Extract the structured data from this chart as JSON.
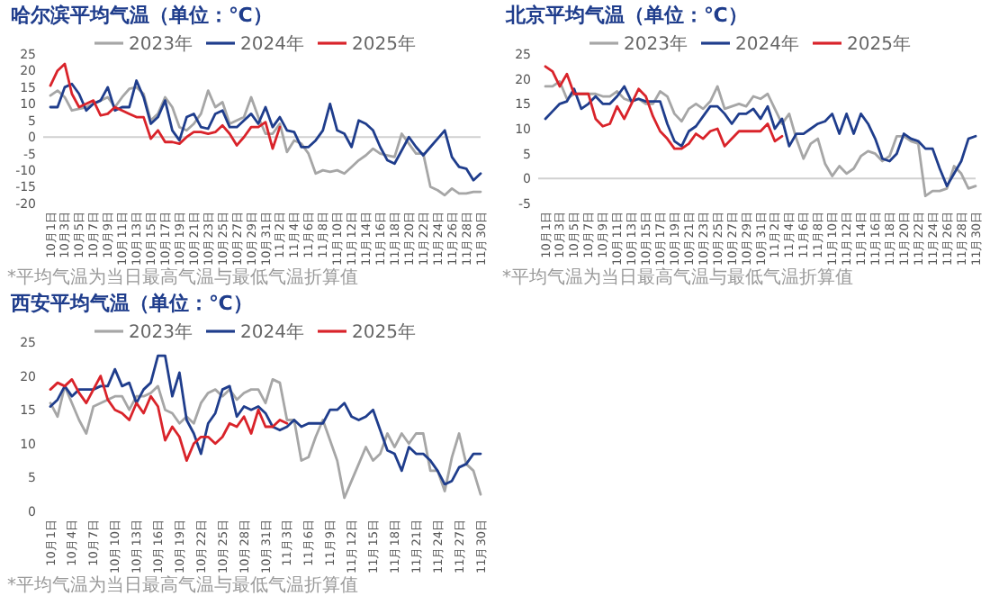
{
  "chart_data": [
    {
      "type": "line",
      "title": "哈尔滨平均气温（单位：℃）",
      "categories": [
        "10月1日",
        null,
        "10月3日",
        null,
        "10月5日",
        null,
        "10月7日",
        null,
        "10月9日",
        null,
        "10月11日",
        null,
        "10月13日",
        null,
        "10月15日",
        null,
        "10月17日",
        null,
        "10月19日",
        null,
        "10月21日",
        null,
        "10月23日",
        null,
        "10月25日",
        null,
        "10月27日",
        null,
        "10月29日",
        null,
        "10月31日",
        null,
        "11月2日",
        null,
        "11月4日",
        null,
        "11月6日",
        null,
        "11月8日",
        null,
        "11月10日",
        null,
        "11月12日",
        null,
        "11月14日",
        null,
        "11月16日",
        null,
        "11月18日",
        null,
        "11月20日",
        null,
        "11月22日",
        null,
        "11月24日",
        null,
        "11月26日",
        null,
        "11月28日",
        null,
        "11月30日"
      ],
      "series": [
        {
          "name": "2023年",
          "color": "#a6a6a6",
          "values": [
            12.5,
            14,
            12,
            8,
            8.5,
            9,
            10,
            11,
            12,
            9,
            12,
            14.5,
            15,
            13,
            5,
            7,
            12,
            9,
            3,
            2,
            4,
            7,
            14,
            9,
            10.5,
            4,
            5,
            6,
            12,
            6,
            1,
            1,
            4,
            -4.5,
            -1,
            -2,
            -5,
            -11,
            -10,
            -10.5,
            -10,
            -11,
            -9,
            -7,
            -5.5,
            -3.5,
            -5,
            -5.5,
            -6,
            1,
            -2,
            -5,
            -5,
            -15,
            -16,
            -17.5,
            -15.5,
            -17,
            -17,
            -16.5,
            -16.5
          ]
        },
        {
          "name": "2024年",
          "color": "#1f3d8c",
          "values": [
            9,
            9,
            15,
            16,
            13,
            8,
            10,
            11,
            15,
            8,
            9,
            9,
            17,
            12,
            4,
            6,
            11,
            2,
            -1,
            6,
            7,
            3,
            2.5,
            7,
            8,
            3,
            3,
            5,
            7,
            4,
            9,
            3,
            6,
            2,
            1.5,
            -3,
            -3,
            -1,
            2,
            10,
            2,
            1,
            -3,
            5,
            4,
            2,
            -3,
            -7,
            -8,
            -4,
            0,
            -3,
            -5.5,
            -3,
            -0.5,
            2,
            -6,
            -9,
            -9.5,
            -13,
            -11
          ]
        },
        {
          "name": "2025年",
          "color": "#d9232a",
          "values": [
            15.5,
            20,
            22,
            13,
            9,
            10,
            11,
            6.5,
            7,
            9,
            8,
            7,
            6,
            6,
            -0.5,
            2,
            -1.5,
            -1.5,
            -2,
            0,
            1.5,
            1.5,
            1,
            1.5,
            3.5,
            1,
            -2.5,
            0,
            3,
            3,
            4.5,
            -3.5,
            3,
            null,
            null,
            null,
            null,
            null,
            null,
            null,
            null,
            null,
            null,
            null,
            null,
            null,
            null,
            null,
            null,
            null,
            null,
            null,
            null,
            null,
            null,
            null,
            null,
            null,
            null,
            null,
            null
          ]
        }
      ],
      "ylim": [
        -20,
        25
      ],
      "yticks": [
        -20,
        -15,
        -10,
        -5,
        0,
        5,
        10,
        15,
        20,
        25
      ],
      "grid": false,
      "ref_lines": [
        {
          "axis": "y",
          "value": 0,
          "color": "#d0d0d0"
        }
      ],
      "legend": "top",
      "marker": "none",
      "line_style": "solid",
      "annotations": [
        "*平均气温为当日最高气温与最低气温折算值"
      ]
    },
    {
      "type": "line",
      "title": "北京平均气温（单位：℃）",
      "categories": [
        "10月1日",
        null,
        "10月3日",
        null,
        "10月5日",
        null,
        "10月7日",
        null,
        "10月9日",
        null,
        "10月11日",
        null,
        "10月13日",
        null,
        "10月15日",
        null,
        "10月17日",
        null,
        "10月19日",
        null,
        "10月21日",
        null,
        "10月23日",
        null,
        "10月25日",
        null,
        "10月27日",
        null,
        "10月29日",
        null,
        "10月31日",
        null,
        "11月2日",
        null,
        "11月4日",
        null,
        "11月6日",
        null,
        "11月8日",
        null,
        "11月10日",
        null,
        "11月12日",
        null,
        "11月14日",
        null,
        "11月16日",
        null,
        "11月18日",
        null,
        "11月20日",
        null,
        "11月22日",
        null,
        "11月24日",
        null,
        "11月26日",
        null,
        "11月28日",
        null,
        "11月30日"
      ],
      "series": [
        {
          "name": "2023年",
          "color": "#a6a6a6",
          "values": [
            18.5,
            18.5,
            19.5,
            16,
            17,
            17,
            17,
            17,
            16.5,
            16.5,
            17.5,
            16,
            15.5,
            16,
            15,
            15,
            17.5,
            16.5,
            13,
            11.5,
            14,
            15,
            14,
            15.5,
            18.5,
            14,
            14.5,
            15,
            14.5,
            16.5,
            16,
            17,
            14,
            11,
            13,
            8,
            4,
            7,
            8,
            3,
            0.5,
            2.5,
            1,
            2,
            4.5,
            5.5,
            5,
            3.5,
            4.5,
            8.5,
            8.5,
            7.5,
            7,
            -3.5,
            -2.5,
            -2.5,
            -2,
            2.5,
            1,
            -2,
            -1.5
          ]
        },
        {
          "name": "2024年",
          "color": "#1f3d8c",
          "values": [
            12,
            13.5,
            15,
            15.5,
            18,
            14,
            15,
            16.5,
            15,
            15,
            16.5,
            18.5,
            15.5,
            16,
            15.5,
            15.5,
            15.5,
            11,
            7.5,
            6.5,
            9.5,
            10.5,
            12.5,
            14.5,
            14.5,
            13,
            11,
            13,
            13,
            14,
            12,
            14.5,
            10,
            12,
            6.5,
            9,
            9,
            10,
            11,
            11.5,
            13,
            9,
            13,
            9,
            13,
            11,
            8,
            4,
            3.5,
            5,
            9,
            8,
            7.5,
            6,
            6,
            2,
            -1.5,
            1,
            3.5,
            8,
            8.5
          ]
        },
        {
          "name": "2025年",
          "color": "#d9232a",
          "values": [
            22.5,
            21.5,
            18.5,
            21,
            17,
            17,
            17,
            12,
            10.5,
            11,
            14.5,
            12,
            15,
            18,
            16.5,
            12.5,
            9.5,
            8,
            6,
            6,
            7,
            9,
            8,
            9.5,
            10,
            6.5,
            8,
            9.5,
            9.5,
            9.5,
            9.5,
            11,
            7.5,
            8.5,
            null,
            null,
            null,
            null,
            null,
            null,
            null,
            null,
            null,
            null,
            null,
            null,
            null,
            null,
            null,
            null,
            null,
            null,
            null,
            null,
            null,
            null,
            null,
            null,
            null,
            null,
            null
          ]
        }
      ],
      "ylim": [
        -5,
        25
      ],
      "yticks": [
        -5,
        0,
        5,
        10,
        15,
        20,
        25
      ],
      "grid": false,
      "ref_lines": [
        {
          "axis": "y",
          "value": 0,
          "color": "#d0d0d0"
        }
      ],
      "legend": "top",
      "marker": "none",
      "line_style": "solid",
      "annotations": [
        "*平均气温为当日最高气温与最低气温折算值"
      ]
    },
    {
      "type": "line",
      "title": "西安平均气温（单位：℃）",
      "categories": [
        "10月1日",
        null,
        null,
        "10月4日",
        null,
        null,
        "10月7日",
        null,
        null,
        "10月10日",
        null,
        null,
        "10月13日",
        null,
        null,
        "10月16日",
        null,
        null,
        "10月19日",
        null,
        null,
        "10月22日",
        null,
        null,
        "10月25日",
        null,
        null,
        "10月28日",
        null,
        null,
        "10月31日",
        null,
        null,
        "11月3日",
        null,
        null,
        "11月6日",
        null,
        null,
        "11月9日",
        null,
        null,
        "11月12日",
        null,
        null,
        "11月15日",
        null,
        null,
        "11月18日",
        null,
        null,
        "11月21日",
        null,
        null,
        "11月24日",
        null,
        null,
        "11月27日",
        null,
        null,
        "11月30日"
      ],
      "series": [
        {
          "name": "2023年",
          "color": "#a6a6a6",
          "values": [
            16,
            14,
            18.5,
            16,
            13.5,
            11.5,
            15.5,
            16,
            16.5,
            17,
            17,
            15,
            17,
            17,
            17.5,
            18.5,
            15,
            14.5,
            13,
            14,
            13,
            16,
            17.5,
            18,
            17,
            18,
            16.5,
            17.5,
            18,
            18,
            16,
            19.5,
            19,
            13.5,
            13.5,
            7.5,
            8,
            11,
            13.5,
            10.5,
            7.5,
            2,
            4.5,
            7,
            9.5,
            7.5,
            8.5,
            11.5,
            9.5,
            11.5,
            10,
            11.5,
            11.5,
            6,
            6,
            3,
            8,
            11.5,
            7,
            6,
            2.5
          ]
        },
        {
          "name": "2024年",
          "color": "#1f3d8c",
          "values": [
            15.5,
            16.5,
            18.5,
            17,
            18,
            18,
            18,
            18.5,
            18.5,
            21,
            18.5,
            19,
            16,
            18,
            19,
            23,
            23,
            17,
            20.5,
            13.5,
            11.5,
            8.5,
            13,
            14.5,
            18,
            18.5,
            14,
            15.5,
            15,
            15.5,
            14.5,
            12.5,
            12,
            12.5,
            13.5,
            12.5,
            13,
            13,
            13,
            15,
            15,
            16,
            14,
            13.5,
            14,
            15,
            12,
            9,
            8.5,
            6,
            9.5,
            8.5,
            8.5,
            7.5,
            6,
            4,
            4.5,
            6.5,
            7,
            8.5,
            8.5
          ]
        },
        {
          "name": "2025年",
          "color": "#d9232a",
          "values": [
            18,
            19,
            18.5,
            19.5,
            17.5,
            16,
            18,
            20,
            16.5,
            15,
            14.5,
            13.5,
            16,
            14.5,
            17,
            15.5,
            10.5,
            12.5,
            11,
            7.5,
            10,
            11,
            11,
            10,
            11,
            13,
            12.5,
            14,
            11.5,
            15,
            12.5,
            12.5,
            13.5,
            13,
            null,
            null,
            null,
            null,
            null,
            null,
            null,
            null,
            null,
            null,
            null,
            null,
            null,
            null,
            null,
            null,
            null,
            null,
            null,
            null,
            null,
            null,
            null,
            null,
            null,
            null,
            null
          ]
        }
      ],
      "ylim": [
        0,
        25
      ],
      "yticks": [
        0,
        5,
        10,
        15,
        20,
        25
      ],
      "grid": false,
      "legend": "top",
      "marker": "none",
      "line_style": "solid",
      "annotations": [
        "*平均气温为当日最高气温与最低气温折算值"
      ]
    }
  ]
}
